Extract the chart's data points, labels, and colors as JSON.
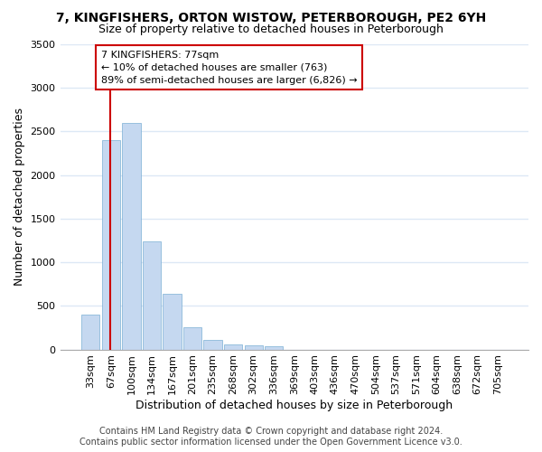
{
  "title": "7, KINGFISHERS, ORTON WISTOW, PETERBOROUGH, PE2 6YH",
  "subtitle": "Size of property relative to detached houses in Peterborough",
  "xlabel": "Distribution of detached houses by size in Peterborough",
  "ylabel": "Number of detached properties",
  "categories": [
    "33sqm",
    "67sqm",
    "100sqm",
    "134sqm",
    "167sqm",
    "201sqm",
    "235sqm",
    "268sqm",
    "302sqm",
    "336sqm",
    "369sqm",
    "403sqm",
    "436sqm",
    "470sqm",
    "504sqm",
    "537sqm",
    "571sqm",
    "604sqm",
    "638sqm",
    "672sqm",
    "705sqm"
  ],
  "values": [
    400,
    2400,
    2600,
    1240,
    640,
    255,
    110,
    55,
    45,
    35,
    0,
    0,
    0,
    0,
    0,
    0,
    0,
    0,
    0,
    0,
    0
  ],
  "bar_color": "#c5d8f0",
  "bar_edge_color": "#7aafd4",
  "vline_x_index": 1,
  "vline_color": "#cc0000",
  "annotation_text": "7 KINGFISHERS: 77sqm\n← 10% of detached houses are smaller (763)\n89% of semi-detached houses are larger (6,826) →",
  "annotation_box_color": "#ffffff",
  "annotation_box_edge_color": "#cc0000",
  "ylim": [
    0,
    3500
  ],
  "yticks": [
    0,
    500,
    1000,
    1500,
    2000,
    2500,
    3000,
    3500
  ],
  "footer": "Contains HM Land Registry data © Crown copyright and database right 2024.\nContains public sector information licensed under the Open Government Licence v3.0.",
  "bg_color": "#ffffff",
  "plot_bg_color": "#ffffff",
  "grid_color": "#dde8f5",
  "title_fontsize": 10,
  "subtitle_fontsize": 9,
  "axis_label_fontsize": 9,
  "tick_fontsize": 8,
  "footer_fontsize": 7
}
